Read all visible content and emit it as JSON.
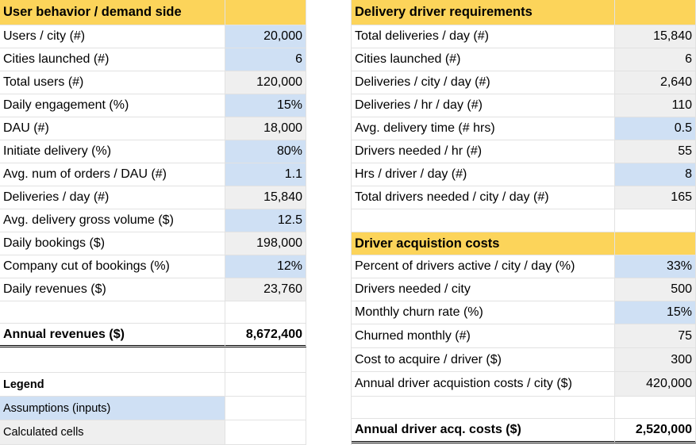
{
  "left": {
    "title": "User behavior / demand side",
    "rows": [
      {
        "label": "Users / city (#)",
        "value": "20,000"
      },
      {
        "label": "Cities launched (#)",
        "value": "6"
      },
      {
        "label": "Total users (#)",
        "value": "120,000"
      },
      {
        "label": "Daily engagement (%)",
        "value": "15%"
      },
      {
        "label": "DAU (#)",
        "value": "18,000"
      },
      {
        "label": "Initiate delivery (%)",
        "value": "80%"
      },
      {
        "label": "Avg. num of orders / DAU (#)",
        "value": "1.1"
      },
      {
        "label": "Deliveries / day (#)",
        "value": "15,840"
      },
      {
        "label": "Avg. delivery gross volume ($)",
        "value": "12.5"
      },
      {
        "label": "Daily bookings ($)",
        "value": "198,000"
      },
      {
        "label": "Company cut of bookings (%)",
        "value": "12%"
      },
      {
        "label": "Daily revenues ($)",
        "value": "23,760"
      }
    ],
    "total": {
      "label": "Annual revenues ($)",
      "value": "8,672,400"
    },
    "legend": {
      "title": "Legend",
      "inputs": "Assumptions (inputs)",
      "calculated": "Calculated cells"
    }
  },
  "driver_req": {
    "title": "Delivery driver requirements",
    "rows": [
      {
        "label": "Total deliveries / day (#)",
        "value": "15,840"
      },
      {
        "label": "Cities launched (#)",
        "value": "6"
      },
      {
        "label": "Deliveries / city / day (#)",
        "value": "2,640"
      },
      {
        "label": "Deliveries / hr / day (#)",
        "value": "110"
      },
      {
        "label": "Avg. delivery time (# hrs)",
        "value": "0.5"
      },
      {
        "label": "Drivers needed / hr (#)",
        "value": "55"
      },
      {
        "label": "Hrs / driver / day (#)",
        "value": "8"
      },
      {
        "label": "Total drivers needed / city / day (#)",
        "value": "165"
      }
    ]
  },
  "driver_acq": {
    "title": "Driver acquistion costs",
    "rows": [
      {
        "label": "Percent of drivers active / city / day (%)",
        "value": "33%"
      },
      {
        "label": "Drivers needed / city",
        "value": "500"
      },
      {
        "label": "Monthly churn rate (%)",
        "value": "15%"
      },
      {
        "label": "Churned monthly (#)",
        "value": "75"
      },
      {
        "label": "Cost to acquire / driver ($)",
        "value": "300"
      },
      {
        "label": "Annual driver acquistion costs / city ($)",
        "value": "420,000"
      }
    ],
    "total": {
      "label": "Annual driver acq. costs ($)",
      "value": "2,520,000"
    }
  },
  "colors": {
    "header": "#fcd45a",
    "input": "#cfe0f4",
    "calculated": "#efefef"
  }
}
